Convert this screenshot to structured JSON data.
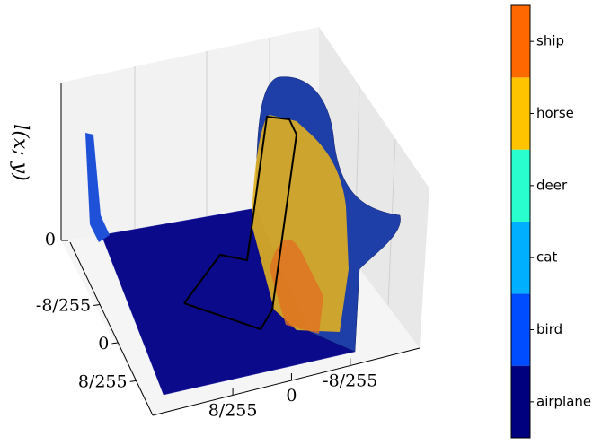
{
  "chart_data": {
    "type": "surface3d",
    "zlabel": "l(x; y)",
    "zticks": [
      0
    ],
    "xticks": [
      {
        "value": -0.03137,
        "label": "-8/255"
      },
      {
        "value": 0,
        "label": "0"
      },
      {
        "value": 0.03137,
        "label": "8/255"
      }
    ],
    "yticks": [
      {
        "value": 0.03137,
        "label": "8/255"
      },
      {
        "value": 0,
        "label": "0"
      },
      {
        "value": -0.03137,
        "label": "-8/255"
      }
    ],
    "colorbar": {
      "categories": [
        "airplane",
        "bird",
        "cat",
        "deer",
        "horse",
        "ship"
      ],
      "colors": [
        "#00007f",
        "#004cff",
        "#00b0ff",
        "#29ffce",
        "#ffc400",
        "#ff6800"
      ]
    }
  }
}
